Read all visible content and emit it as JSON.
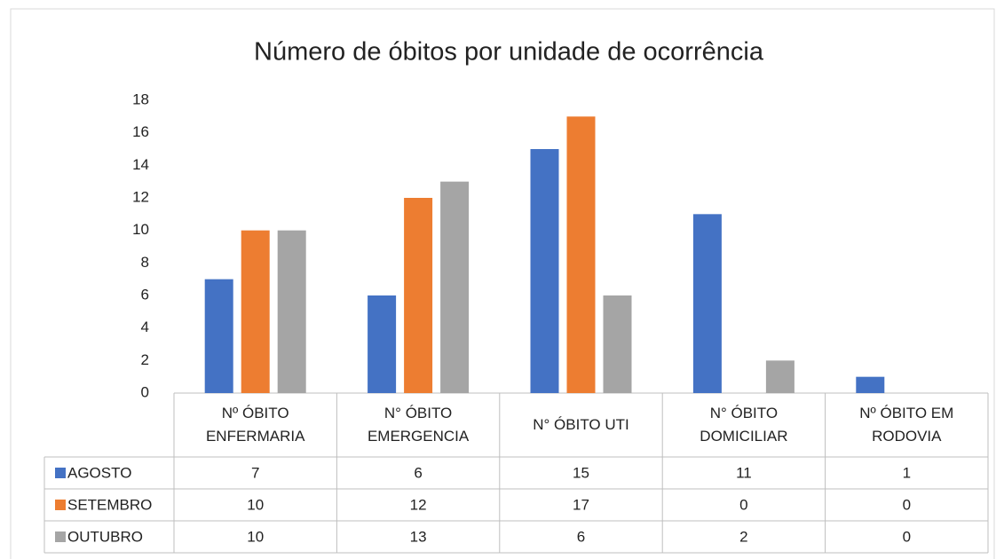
{
  "chart_data": {
    "type": "bar",
    "title": "Número de óbitos por unidade de ocorrência",
    "categories": [
      "Nº ÓBITO ENFERMARIA",
      "N° ÓBITO EMERGENCIA",
      "N° ÓBITO UTI",
      "N° ÓBITO DOMICILIAR",
      "Nº ÓBITO EM RODOVIA"
    ],
    "series": [
      {
        "name": "AGOSTO",
        "color": "#4472c4",
        "values": [
          7,
          6,
          15,
          11,
          1
        ]
      },
      {
        "name": "SETEMBRO",
        "color": "#ed7d31",
        "values": [
          10,
          12,
          17,
          0,
          0
        ]
      },
      {
        "name": "OUTUBRO",
        "color": "#a5a5a5",
        "values": [
          10,
          13,
          6,
          2,
          0
        ]
      }
    ],
    "ylim": [
      0,
      18
    ],
    "yticks": [
      0,
      2,
      4,
      6,
      8,
      10,
      12,
      14,
      16,
      18
    ],
    "grid": false,
    "legend": "table"
  }
}
